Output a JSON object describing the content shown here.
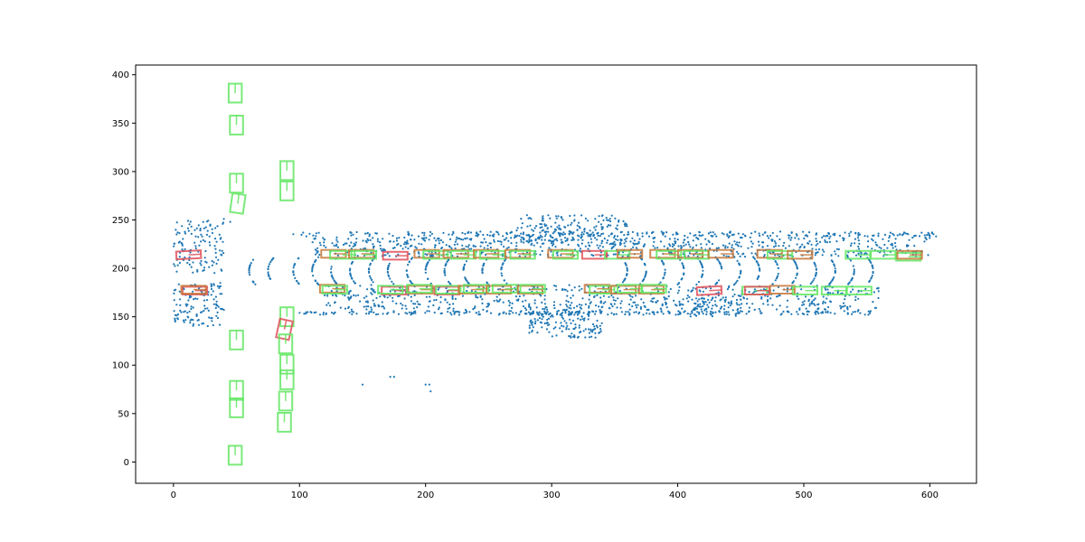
{
  "chart_data": {
    "type": "scatter",
    "title": "",
    "xlabel": "",
    "ylabel": "",
    "xlim": [
      -30,
      637
    ],
    "ylim": [
      -22,
      410
    ],
    "xticks": [
      0,
      100,
      200,
      300,
      400,
      500,
      600
    ],
    "yticks": [
      0,
      50,
      100,
      150,
      200,
      250,
      300,
      350,
      400
    ],
    "grid": false,
    "legend": "none",
    "colors": {
      "points": "#1f77b4",
      "box_green": "#63e663",
      "box_red": "#e0505a",
      "box_orange": "#c8783a"
    },
    "box_size": {
      "length": 19.5,
      "width": 8
    },
    "point_regions": [
      {
        "name": "upper-lane-line",
        "x": [
          95,
          605
        ],
        "y": [
          233,
          238
        ],
        "n": 260
      },
      {
        "name": "lower-lane-line",
        "x": [
          100,
          560
        ],
        "y": [
          152,
          156
        ],
        "n": 240
      },
      {
        "name": "upper-scatter",
        "x": [
          110,
          600
        ],
        "y": [
          212,
          232
        ],
        "n": 700
      },
      {
        "name": "lower-scatter",
        "x": [
          120,
          560
        ],
        "y": [
          157,
          183
        ],
        "n": 650
      },
      {
        "name": "left-cluster-upper",
        "x": [
          0,
          40
        ],
        "y": [
          195,
          250
        ],
        "n": 120
      },
      {
        "name": "left-cluster-lower",
        "x": [
          0,
          40
        ],
        "y": [
          140,
          185
        ],
        "n": 130
      },
      {
        "name": "center-blob-top",
        "x": [
          270,
          360
        ],
        "y": [
          225,
          255
        ],
        "n": 180
      },
      {
        "name": "center-blob-bottom",
        "x": [
          280,
          340
        ],
        "y": [
          128,
          160
        ],
        "n": 160
      },
      {
        "name": "right-blob",
        "x": [
          410,
          450
        ],
        "y": [
          150,
          170
        ],
        "n": 60
      }
    ],
    "arcs": [
      {
        "side": "left",
        "x_at_center": [
          60,
          75,
          95,
          110,
          125,
          140,
          155,
          170,
          185,
          200,
          215,
          230,
          245,
          260
        ],
        "y_range": [
          183,
          212
        ]
      },
      {
        "side": "right",
        "x_at_center": [
          360,
          375,
          390,
          405,
          420,
          435,
          450,
          465,
          480,
          495,
          510,
          525,
          540,
          555
        ],
        "y_range": [
          183,
          212
        ]
      }
    ],
    "sparse_points": [
      {
        "x": 150,
        "y": 80
      },
      {
        "x": 172,
        "y": 88
      },
      {
        "x": 175,
        "y": 88
      },
      {
        "x": 200,
        "y": 80
      },
      {
        "x": 203,
        "y": 80
      },
      {
        "x": 204,
        "y": 73
      },
      {
        "x": 45,
        "y": 248
      },
      {
        "x": 40,
        "y": 251
      }
    ],
    "boxes": [
      {
        "color": "green",
        "cx": 49,
        "cy": 381,
        "orient": "v"
      },
      {
        "color": "green",
        "cx": 50,
        "cy": 348,
        "orient": "v"
      },
      {
        "color": "green",
        "cx": 50,
        "cy": 288,
        "orient": "v"
      },
      {
        "color": "green",
        "cx": 51,
        "cy": 267,
        "orient": "v",
        "angle": 8
      },
      {
        "color": "green",
        "cx": 90,
        "cy": 301,
        "orient": "v"
      },
      {
        "color": "green",
        "cx": 90,
        "cy": 280,
        "orient": "v"
      },
      {
        "color": "green",
        "cx": 50,
        "cy": 126,
        "orient": "v"
      },
      {
        "color": "green",
        "cx": 50,
        "cy": 74,
        "orient": "v"
      },
      {
        "color": "green",
        "cx": 50,
        "cy": 56,
        "orient": "v"
      },
      {
        "color": "green",
        "cx": 49,
        "cy": 7,
        "orient": "v"
      },
      {
        "color": "green",
        "cx": 90,
        "cy": 150,
        "orient": "v"
      },
      {
        "color": "red",
        "cx": 88,
        "cy": 137,
        "orient": "v",
        "angle": 12
      },
      {
        "color": "green",
        "cx": 89,
        "cy": 122,
        "orient": "v"
      },
      {
        "color": "green",
        "cx": 90,
        "cy": 101,
        "orient": "v"
      },
      {
        "color": "green",
        "cx": 90,
        "cy": 85,
        "orient": "v"
      },
      {
        "color": "green",
        "cx": 89,
        "cy": 63,
        "orient": "v"
      },
      {
        "color": "green",
        "cx": 88,
        "cy": 41,
        "orient": "v"
      },
      {
        "color": "red",
        "cx": 12,
        "cy": 214,
        "orient": "h",
        "angle": -3
      },
      {
        "color": "orange",
        "cx": 127,
        "cy": 215,
        "orient": "h"
      },
      {
        "color": "green",
        "cx": 134,
        "cy": 214,
        "orient": "h"
      },
      {
        "color": "orange",
        "cx": 149,
        "cy": 215,
        "orient": "h"
      },
      {
        "color": "green",
        "cx": 151,
        "cy": 214,
        "orient": "h"
      },
      {
        "color": "red",
        "cx": 176,
        "cy": 213,
        "orient": "h"
      },
      {
        "color": "orange",
        "cx": 201,
        "cy": 215,
        "orient": "h"
      },
      {
        "color": "green",
        "cx": 208,
        "cy": 214,
        "orient": "h"
      },
      {
        "color": "orange",
        "cx": 224,
        "cy": 215,
        "orient": "h"
      },
      {
        "color": "green",
        "cx": 230,
        "cy": 214,
        "orient": "h"
      },
      {
        "color": "orange",
        "cx": 248,
        "cy": 215,
        "orient": "h"
      },
      {
        "color": "green",
        "cx": 253,
        "cy": 214,
        "orient": "h"
      },
      {
        "color": "orange",
        "cx": 273,
        "cy": 215,
        "orient": "h"
      },
      {
        "color": "green",
        "cx": 277,
        "cy": 214,
        "orient": "h"
      },
      {
        "color": "orange",
        "cx": 307,
        "cy": 215,
        "orient": "h"
      },
      {
        "color": "green",
        "cx": 311,
        "cy": 214,
        "orient": "h"
      },
      {
        "color": "red",
        "cx": 334,
        "cy": 214,
        "orient": "h"
      },
      {
        "color": "green",
        "cx": 352,
        "cy": 214,
        "orient": "h"
      },
      {
        "color": "orange",
        "cx": 362,
        "cy": 215,
        "orient": "h"
      },
      {
        "color": "orange",
        "cx": 388,
        "cy": 215,
        "orient": "h"
      },
      {
        "color": "green",
        "cx": 393,
        "cy": 214,
        "orient": "h"
      },
      {
        "color": "orange",
        "cx": 410,
        "cy": 215,
        "orient": "h"
      },
      {
        "color": "green",
        "cx": 415,
        "cy": 214,
        "orient": "h"
      },
      {
        "color": "orange",
        "cx": 434,
        "cy": 215,
        "orient": "h"
      },
      {
        "color": "orange",
        "cx": 473,
        "cy": 215,
        "orient": "h"
      },
      {
        "color": "green",
        "cx": 481,
        "cy": 214,
        "orient": "h"
      },
      {
        "color": "orange",
        "cx": 497,
        "cy": 214,
        "orient": "h"
      },
      {
        "color": "green",
        "cx": 543,
        "cy": 214,
        "orient": "h"
      },
      {
        "color": "green",
        "cx": 563,
        "cy": 214,
        "orient": "h"
      },
      {
        "color": "green",
        "cx": 583,
        "cy": 212,
        "orient": "h"
      },
      {
        "color": "orange",
        "cx": 584,
        "cy": 214,
        "orient": "h"
      },
      {
        "color": "red",
        "cx": 17,
        "cy": 177,
        "orient": "h"
      },
      {
        "color": "orange",
        "cx": 16,
        "cy": 178,
        "orient": "h"
      },
      {
        "color": "orange",
        "cx": 126,
        "cy": 179,
        "orient": "h"
      },
      {
        "color": "green",
        "cx": 128,
        "cy": 178,
        "orient": "h"
      },
      {
        "color": "red",
        "cx": 175,
        "cy": 177,
        "orient": "h"
      },
      {
        "color": "green",
        "cx": 172,
        "cy": 178,
        "orient": "h"
      },
      {
        "color": "orange",
        "cx": 196,
        "cy": 178,
        "orient": "h"
      },
      {
        "color": "green",
        "cx": 195,
        "cy": 179,
        "orient": "h"
      },
      {
        "color": "red",
        "cx": 217,
        "cy": 177,
        "orient": "h"
      },
      {
        "color": "green",
        "cx": 218,
        "cy": 178,
        "orient": "h"
      },
      {
        "color": "orange",
        "cx": 236,
        "cy": 178,
        "orient": "h"
      },
      {
        "color": "green",
        "cx": 240,
        "cy": 179,
        "orient": "h"
      },
      {
        "color": "orange",
        "cx": 258,
        "cy": 178,
        "orient": "h"
      },
      {
        "color": "green",
        "cx": 263,
        "cy": 179,
        "orient": "h"
      },
      {
        "color": "orange",
        "cx": 283,
        "cy": 178,
        "orient": "h"
      },
      {
        "color": "green",
        "cx": 285,
        "cy": 179,
        "orient": "h"
      },
      {
        "color": "orange",
        "cx": 336,
        "cy": 179,
        "orient": "h"
      },
      {
        "color": "green",
        "cx": 340,
        "cy": 178,
        "orient": "h"
      },
      {
        "color": "orange",
        "cx": 357,
        "cy": 178,
        "orient": "h"
      },
      {
        "color": "green",
        "cx": 362,
        "cy": 179,
        "orient": "h"
      },
      {
        "color": "orange",
        "cx": 379,
        "cy": 178,
        "orient": "h"
      },
      {
        "color": "green",
        "cx": 381,
        "cy": 179,
        "orient": "h"
      },
      {
        "color": "red",
        "cx": 425,
        "cy": 177,
        "orient": "h",
        "angle": -3
      },
      {
        "color": "green",
        "cx": 461,
        "cy": 177,
        "orient": "h"
      },
      {
        "color": "red",
        "cx": 463,
        "cy": 177,
        "orient": "h"
      },
      {
        "color": "orange",
        "cx": 483,
        "cy": 178,
        "orient": "h"
      },
      {
        "color": "green",
        "cx": 501,
        "cy": 177,
        "orient": "h"
      },
      {
        "color": "green",
        "cx": 524,
        "cy": 177,
        "orient": "h"
      },
      {
        "color": "green",
        "cx": 544,
        "cy": 177,
        "orient": "h"
      }
    ]
  }
}
